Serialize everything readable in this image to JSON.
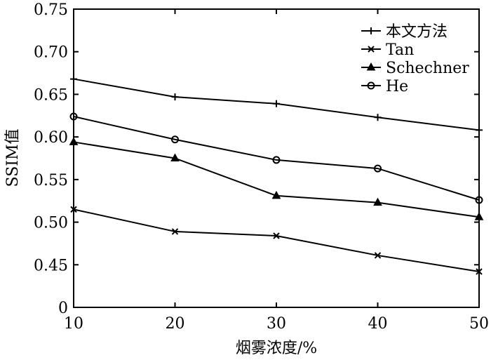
{
  "chart_data": {
    "type": "line",
    "x": [
      10,
      20,
      30,
      40,
      50
    ],
    "xlim": [
      10,
      50
    ],
    "ylim": [
      0.4,
      0.75
    ],
    "xlabel": "烟雾浓度/%",
    "ylabel": "SSIM值",
    "x_ticks": [
      "10",
      "20",
      "30",
      "40",
      "50"
    ],
    "y_ticks": [
      {
        "value": 0.4,
        "label": "0"
      },
      {
        "value": 0.45,
        "label": "0.45"
      },
      {
        "value": 0.5,
        "label": "0.50"
      },
      {
        "value": 0.55,
        "label": "0.55"
      },
      {
        "value": 0.6,
        "label": "0.60"
      },
      {
        "value": 0.65,
        "label": "0.65"
      },
      {
        "value": 0.7,
        "label": "0.70"
      },
      {
        "value": 0.75,
        "label": "0.75"
      }
    ],
    "grid": false,
    "legend_position": "top-right",
    "series": [
      {
        "name": "本文方法",
        "marker": "plus",
        "values": [
          0.668,
          0.647,
          0.639,
          0.623,
          0.608
        ]
      },
      {
        "name": "Tan",
        "marker": "cross",
        "values": [
          0.515,
          0.489,
          0.484,
          0.461,
          0.442
        ]
      },
      {
        "name": "Schechner",
        "marker": "triangle",
        "values": [
          0.594,
          0.575,
          0.531,
          0.523,
          0.506
        ]
      },
      {
        "name": "He",
        "marker": "circle",
        "values": [
          0.624,
          0.597,
          0.573,
          0.563,
          0.526
        ]
      }
    ]
  }
}
